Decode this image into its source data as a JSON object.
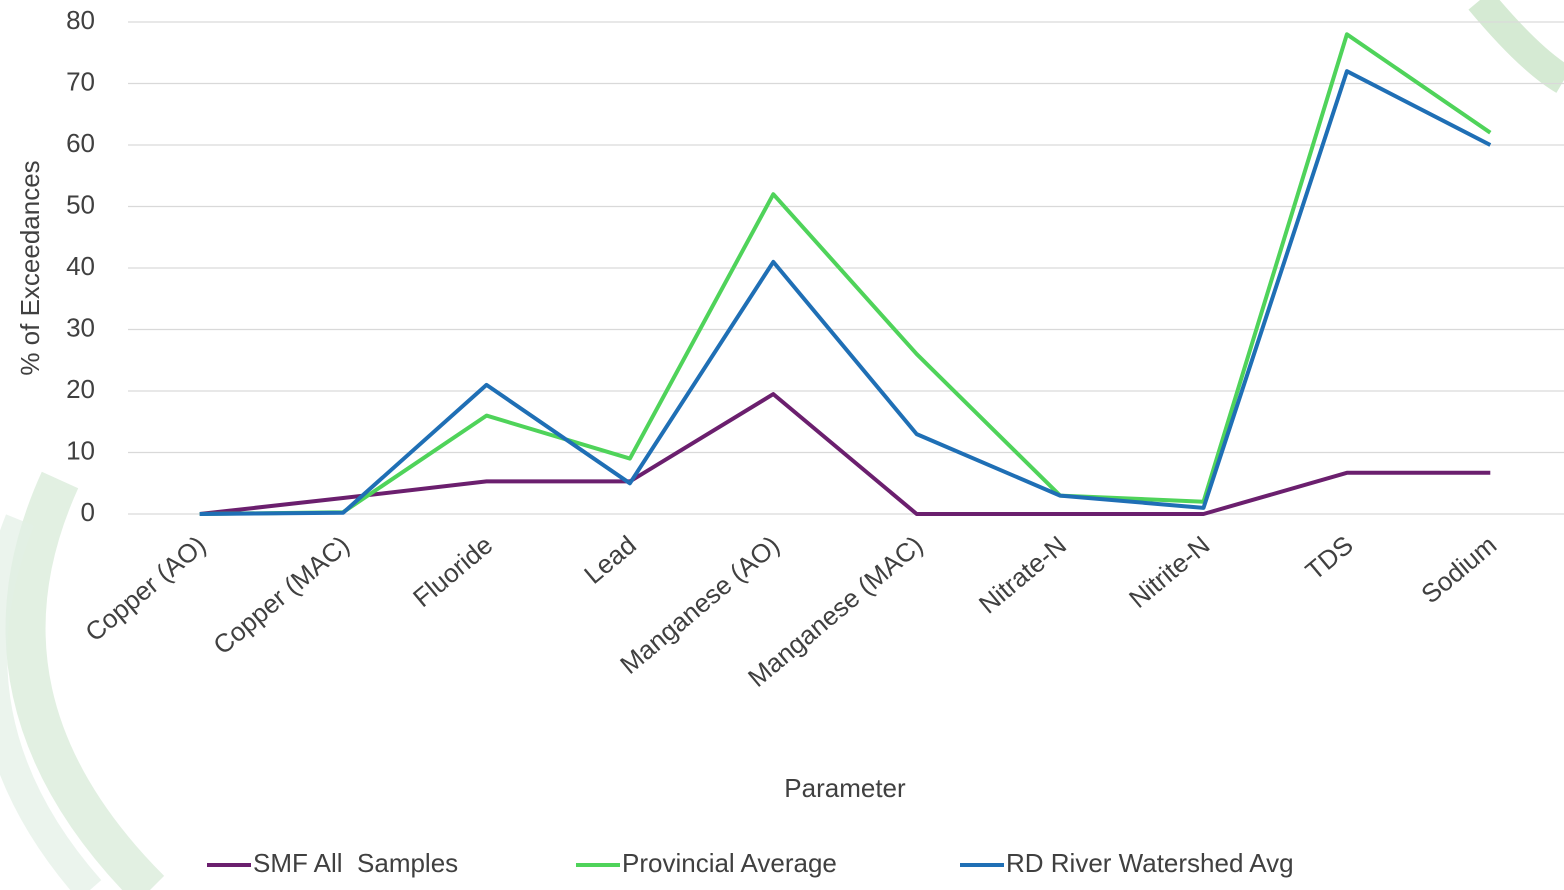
{
  "chart_data": {
    "type": "line",
    "x_label": "Parameter",
    "y_label": "% of Exceedances",
    "categories": [
      "Copper (AO)",
      "Copper (MAC)",
      "Fluoride",
      "Lead",
      "Manganese (AO)",
      "Manganese (MAC)",
      "Nitrate-N",
      "Nitrite-N",
      "TDS",
      "Sodium"
    ],
    "series": [
      {
        "name": "SMF All  Samples",
        "color": "#6b1f6e",
        "values": [
          0,
          2.6,
          5.3,
          5.3,
          19.5,
          0,
          0,
          0,
          6.7,
          6.7
        ]
      },
      {
        "name": "Provincial Average",
        "color": "#4fd35a",
        "values": [
          0,
          0.3,
          16,
          9,
          52,
          26,
          3,
          2,
          78,
          62
        ]
      },
      {
        "name": "RD River Watershed Avg",
        "color": "#1f6fb5",
        "values": [
          0,
          0.2,
          21,
          5,
          41,
          13,
          3,
          1,
          72,
          60
        ]
      }
    ],
    "ylim": [
      0,
      80
    ],
    "yticks": [
      0,
      10,
      20,
      30,
      40,
      50,
      60,
      70,
      80
    ],
    "grid": true,
    "legend": "bottom"
  }
}
